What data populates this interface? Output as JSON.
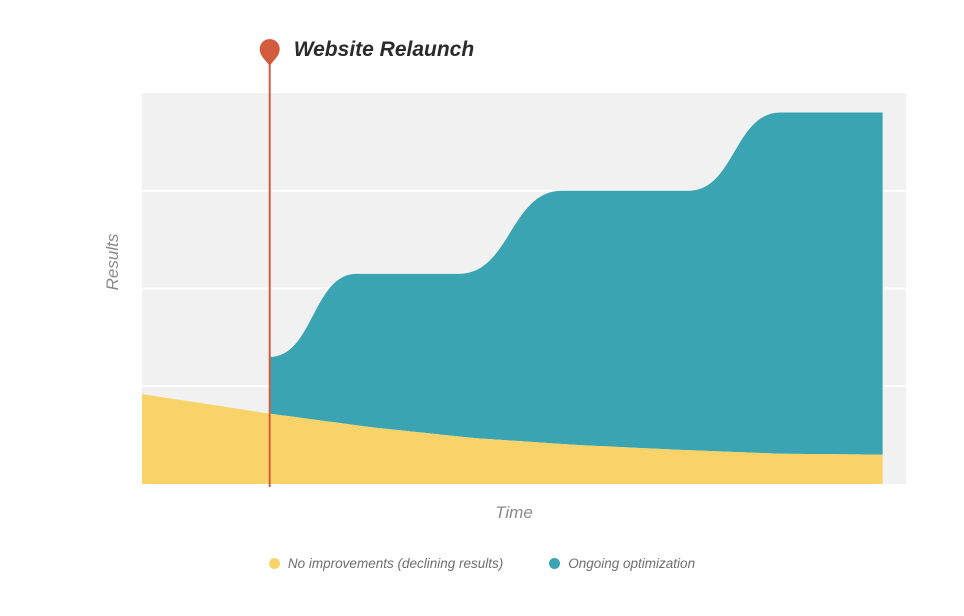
{
  "chart_data": {
    "type": "area",
    "title": "",
    "xlabel": "Time",
    "ylabel": "Results",
    "grid": true,
    "legend_position": "bottom-center",
    "event": {
      "label": "Website Relaunch",
      "x": 1,
      "color": "#d35c3e"
    },
    "x": [
      0,
      1,
      2,
      3,
      4,
      5,
      6
    ],
    "series": [
      {
        "name": "No improvements (declining results)",
        "color": "#f8d36a",
        "x": [
          0,
          1,
          1.8,
          2.6,
          3.4,
          4.2,
          5.0,
          5.8
        ],
        "values": [
          0.92,
          0.72,
          0.58,
          0.47,
          0.4,
          0.35,
          0.31,
          0.3
        ]
      },
      {
        "name": "Ongoing optimization",
        "color": "#3aa4b2",
        "x": [
          1,
          1.68,
          2.48,
          3.29,
          4.28,
          5.0,
          5.8
        ],
        "values": [
          1.3,
          2.15,
          2.15,
          3.0,
          3.0,
          3.8,
          3.8
        ]
      }
    ],
    "ylim": [
      0,
      4
    ],
    "xlim": [
      0,
      5.85
    ]
  }
}
